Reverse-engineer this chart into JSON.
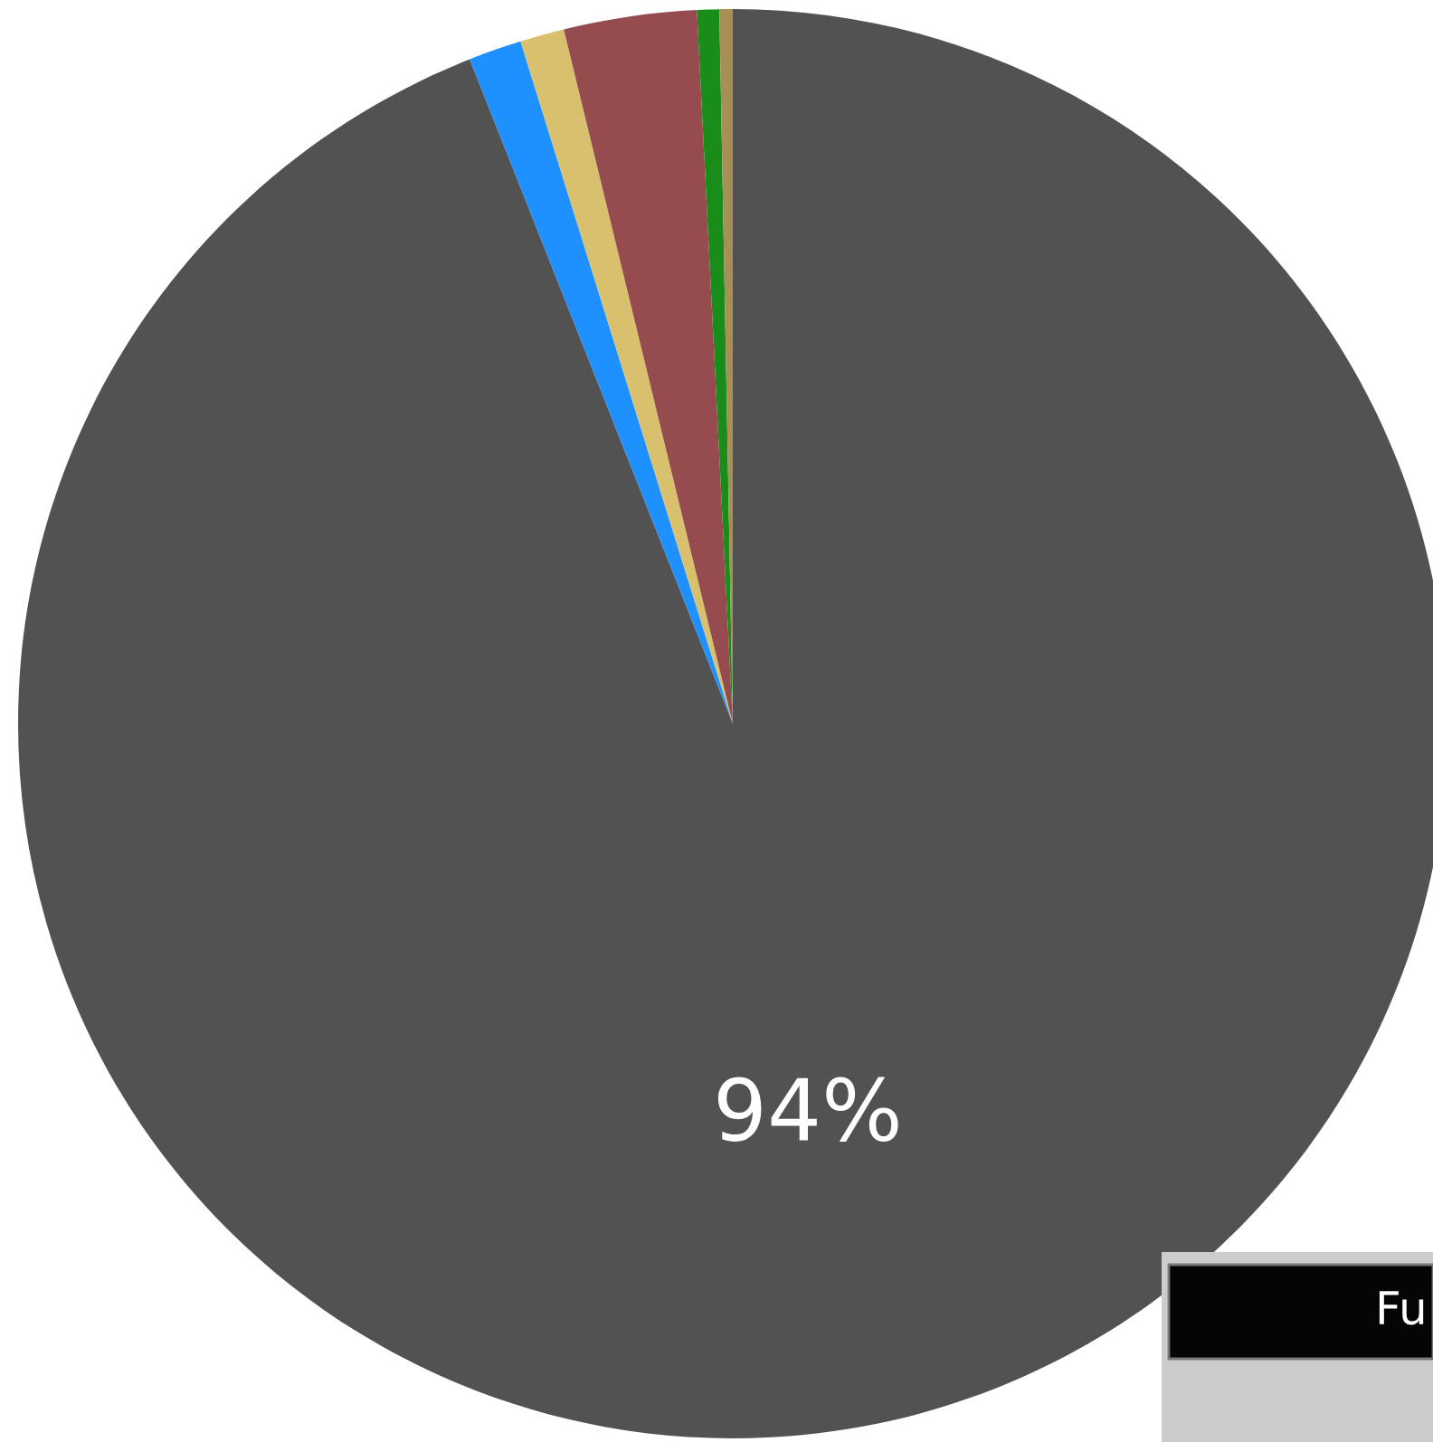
{
  "chart_data": {
    "type": "pie",
    "categories": [
      null,
      null,
      null,
      null,
      null,
      null
    ],
    "values": [
      94,
      1.2,
      1.0,
      3.0,
      0.5,
      0.3
    ],
    "colors": [
      "#525252",
      "#1e90ff",
      "#d8c06e",
      "#964b4e",
      "#1a8c1a",
      "#a88f55"
    ],
    "value_labels": [
      "94%",
      null,
      null,
      null,
      null,
      null
    ],
    "annotations": [
      "Fu"
    ]
  }
}
